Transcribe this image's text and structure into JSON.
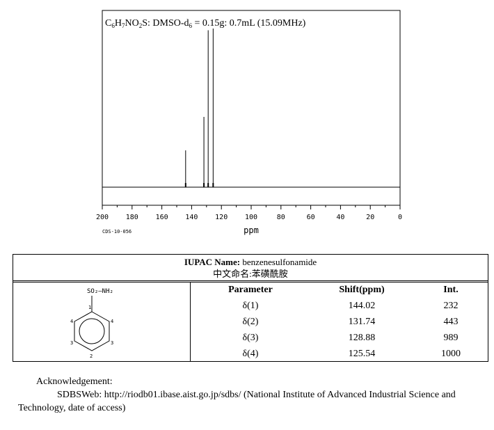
{
  "chart_data": {
    "type": "line",
    "title_parts": {
      "formula": [
        "C",
        "6",
        "H",
        "7",
        "NO",
        "2",
        "S"
      ],
      "solvent_prefix": ": DMSO-d",
      "solvent_sub": "6",
      "solvent_suffix": " = 0.15g: 0.7mL (15.09MHz)"
    },
    "xlabel": "ppm",
    "xlim": [
      200,
      0
    ],
    "x_reversed": true,
    "x_ticks": [
      200,
      180,
      160,
      140,
      120,
      100,
      80,
      60,
      40,
      20,
      0
    ],
    "peaks": [
      {
        "ppm": 144.02,
        "intensity": 232
      },
      {
        "ppm": 131.74,
        "intensity": 443
      },
      {
        "ppm": 128.88,
        "intensity": 989
      },
      {
        "ppm": 125.54,
        "intensity": 1000
      }
    ],
    "code": "CDS-10-056",
    "grid": false
  },
  "names": {
    "iupac_label": "IUPAC Name:",
    "iupac_value": " benzenesulfonamide",
    "chinese_label": "中文命名:",
    "chinese_value": "苯磺酰胺"
  },
  "structure": {
    "group_label": "SO₂—NH₂",
    "atom_numbers": [
      "1",
      "2",
      "3",
      "3",
      "4",
      "4"
    ]
  },
  "table": {
    "headers": [
      "Parameter",
      "Shift(ppm)",
      "Int."
    ],
    "rows": [
      [
        "δ(1)",
        "144.02",
        "232"
      ],
      [
        "δ(2)",
        "131.74",
        "443"
      ],
      [
        "δ(3)",
        "128.88",
        "989"
      ],
      [
        "δ(4)",
        "125.54",
        "1000"
      ]
    ]
  },
  "acknowledgement": {
    "heading": "Acknowledgement:",
    "line1": "SDBSWeb: http://riodb01.ibase.aist.go.jp/sdbs/ (National Institute of Advanced Industrial Science and",
    "line2": "Technology, date of access)"
  }
}
